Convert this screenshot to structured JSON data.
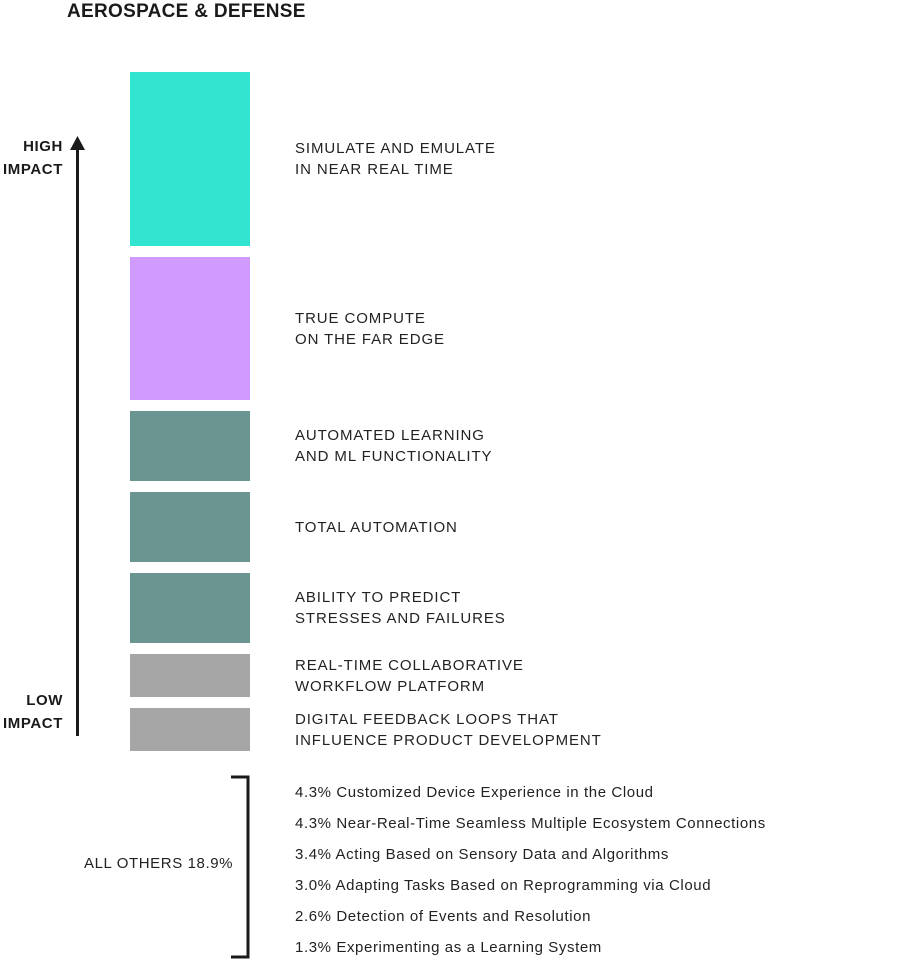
{
  "chart_data": {
    "type": "bar",
    "title": "AEROSPACE & DEFENSE",
    "axis": {
      "high_label": [
        "HIGH",
        "IMPACT"
      ],
      "low_label": [
        "LOW",
        "IMPACT"
      ]
    },
    "categories": [
      [
        "SIMULATE AND EMULATE",
        "IN NEAR REAL TIME"
      ],
      [
        "TRUE COMPUTE",
        "ON THE FAR EDGE"
      ],
      [
        "AUTOMATED LEARNING",
        "AND ML FUNCTIONALITY"
      ],
      [
        "TOTAL AUTOMATION"
      ],
      [
        "ABILITY TO PREDICT",
        "STRESSES AND FAILURES"
      ],
      [
        "REAL-TIME COLLABORATIVE",
        "WORKFLOW PLATFORM"
      ],
      [
        "DIGITAL FEEDBACK LOOPS THAT",
        "INFLUENCE PRODUCT DEVELOPMENT"
      ]
    ],
    "values": [
      17.4,
      14.3,
      7.0,
      7.0,
      7.0,
      4.3,
      4.3
    ],
    "colors": [
      "#31e5d0",
      "#d19aff",
      "#6a9590",
      "#6a9590",
      "#6a9590",
      "#a6a6a6",
      "#a6a6a6"
    ],
    "others": {
      "label": "ALL OTHERS 18.9%",
      "items": [
        "4.3% Customized Device Experience in the Cloud",
        "4.3% Near-Real-Time Seamless Multiple Ecosystem Connections",
        "3.4% Acting Based on Sensory Data and Algorithms",
        "3.0% Adapting Tasks Based on Reprogramming via Cloud",
        "2.6% Detection of Events and Resolution",
        "1.3% Experimenting as a Learning System"
      ]
    }
  }
}
